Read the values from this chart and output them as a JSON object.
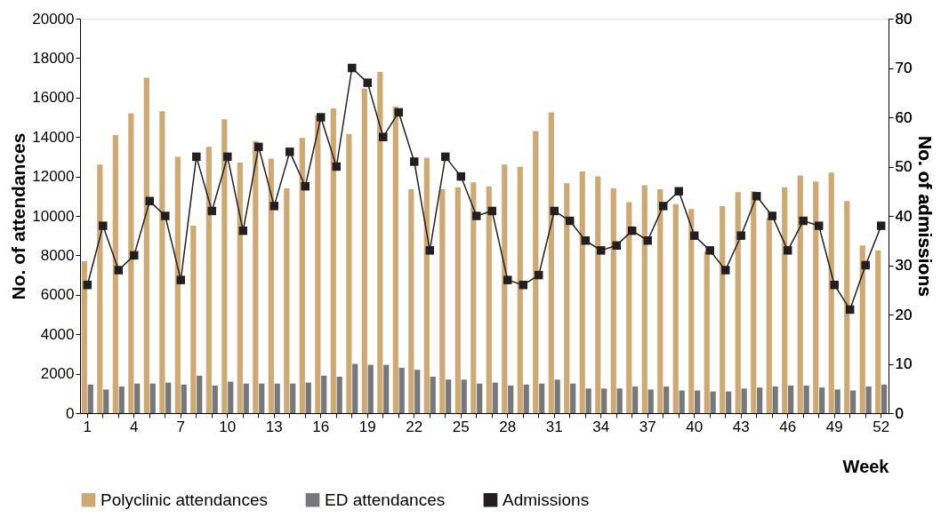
{
  "chart_data": {
    "type": "bar",
    "xlabel": "Week",
    "ylabel": "No. of attendances",
    "y2label": "No. of admissions",
    "categories": [
      "1",
      null,
      null,
      "4",
      null,
      null,
      "7",
      null,
      null,
      "10",
      null,
      null,
      "13",
      null,
      null,
      "16",
      null,
      null,
      "19",
      null,
      null,
      "22",
      null,
      null,
      "25",
      null,
      null,
      "28",
      null,
      null,
      "31",
      null,
      null,
      "34",
      null,
      null,
      "37",
      null,
      null,
      "40",
      null,
      null,
      "43",
      null,
      null,
      "46",
      null,
      null,
      "49",
      null,
      null,
      "52"
    ],
    "series": [
      {
        "name": "Polyclinic attendances",
        "color": "#cfa974",
        "values": [
          7700,
          12600,
          14100,
          15200,
          17000,
          15300,
          13000,
          9500,
          13500,
          14900,
          12700,
          13800,
          12900,
          11400,
          13950,
          15100,
          15450,
          14150,
          16450,
          17300,
          15550,
          11350,
          12950,
          11350,
          11450,
          11700,
          11500,
          12600,
          12500,
          14300,
          15250,
          11650,
          12250,
          12000,
          11400,
          10700,
          11550,
          11350,
          10600,
          10350,
          8200,
          10500,
          11200,
          11250,
          9900,
          11450,
          12050,
          11750,
          12200,
          10750,
          8500,
          8250
        ]
      },
      {
        "name": "ED attendances",
        "color": "#77787b",
        "values": [
          1450,
          1200,
          1350,
          1500,
          1500,
          1550,
          1450,
          1900,
          1400,
          1600,
          1500,
          1500,
          1500,
          1500,
          1550,
          1900,
          1850,
          2500,
          2450,
          2450,
          2300,
          2200,
          1850,
          1700,
          1700,
          1500,
          1550,
          1400,
          1450,
          1500,
          1700,
          1500,
          1250,
          1250,
          1250,
          1350,
          1200,
          1350,
          1150,
          1150,
          1100,
          1100,
          1250,
          1300,
          1350,
          1400,
          1400,
          1300,
          1200,
          1150,
          1350,
          1450
        ]
      },
      {
        "name": "Admissions",
        "color": "#231f20",
        "type": "line",
        "axis": "y2",
        "values": [
          26,
          38,
          29,
          32,
          43,
          40,
          27,
          52,
          41,
          52,
          37,
          54,
          42,
          53,
          46,
          60,
          50,
          70,
          67,
          56,
          61,
          51,
          33,
          52,
          48,
          40,
          41,
          27,
          26,
          28,
          41,
          39,
          35,
          33,
          34,
          37,
          35,
          42,
          45,
          36,
          33,
          29,
          36,
          44,
          40,
          33,
          39,
          38,
          26,
          21,
          30,
          38
        ]
      }
    ],
    "ylim": [
      0,
      20000
    ],
    "yticks": [
      0,
      2000,
      4000,
      6000,
      8000,
      10000,
      12000,
      14000,
      16000,
      18000,
      20000
    ],
    "y2lim": [
      0,
      80
    ],
    "y2ticks": [
      0,
      10,
      20,
      30,
      40,
      50,
      60,
      70,
      80
    ],
    "grid": false,
    "legend": "bottom",
    "marker": "square",
    "line_style": "solid"
  }
}
